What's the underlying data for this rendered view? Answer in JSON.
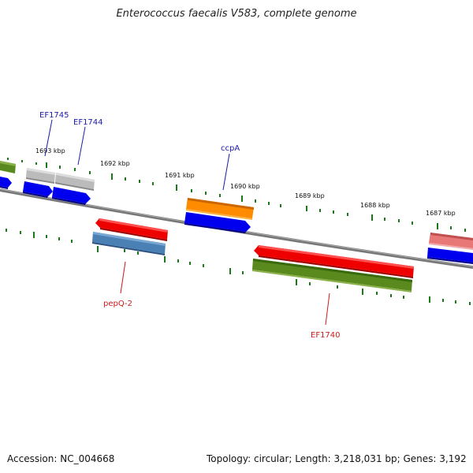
{
  "title": "Enterococcus faecalis V583, complete genome",
  "footer": {
    "accession": "Accession: NC_004668",
    "summary": "Topology: circular; Length: 3,218,031 bp; Genes: 3,192"
  },
  "ticks": [
    "1693 kbp",
    "1692 kbp",
    "1691 kbp",
    "1690 kbp",
    "1689 kbp",
    "1688 kbp",
    "1687 kbp"
  ],
  "gene_labels": {
    "ef1745": "EF1745",
    "ef1744": "EF1744",
    "ccpa": "ccpA",
    "pepq2": "pepQ-2",
    "ef1740": "EF1740"
  },
  "colors": {
    "backbone": "#777777",
    "tick": "#1a7a1a",
    "forward_label": "#1a1aaa",
    "reverse_label": "#cc1a1a",
    "cds_blue": "#0000ee",
    "olive": "#5a8a1e",
    "gray": "#bbbbbb",
    "orange": "#ff8c00",
    "red": "#ee0000",
    "steel": "#4a80b4",
    "pink": "#e87878"
  }
}
